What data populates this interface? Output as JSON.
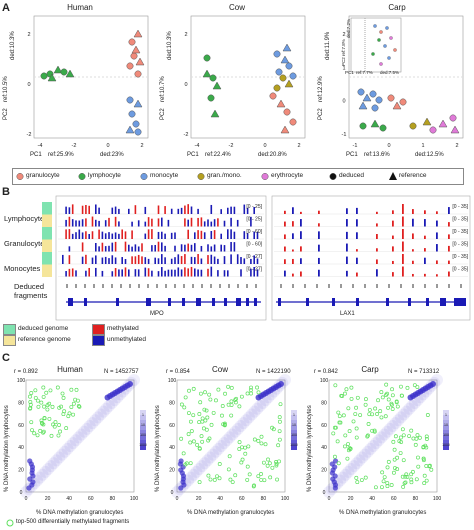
{
  "panels": {
    "a": {
      "letter": "A",
      "plots": [
        {
          "title": "Human",
          "pc1_label": "PC1",
          "pc1_ref": "ref:25.9%",
          "pc1_ded": "ded:23%",
          "pc2_label": "PC2",
          "pc2_ref": "ref:10.5%",
          "pc2_ded": "ded:10.3%",
          "x_ticks": [
            "-4",
            "-2",
            "0",
            "2"
          ],
          "y_ticks": [
            "2",
            "0",
            "-2"
          ]
        },
        {
          "title": "Cow",
          "pc1_label": "PC1",
          "pc1_ref": "ref:22.4%",
          "pc1_ded": "ded:20.8%",
          "pc2_label": "PC2",
          "pc2_ref": "ref:10.7%",
          "pc2_ded": "ded:10.3%",
          "x_ticks": [
            "-4",
            "-2",
            "0",
            "2"
          ],
          "y_ticks": [
            "2",
            "0",
            "-2"
          ]
        },
        {
          "title": "Carp",
          "pc1_label": "PC1",
          "pc1_ref": "ref:13.6%",
          "pc1_ded": "ded:12.5%",
          "pc2_label": "PC2",
          "pc2_ref": "ref:12.9%",
          "pc2_ded": "ded:11.9%",
          "x_ticks": [
            "-1",
            "0",
            "1",
            "2"
          ],
          "y_ticks": [
            "2",
            "1",
            "0",
            "-1"
          ],
          "inset": {
            "pc1_label": "PC1",
            "pc1_ref": "ref:7.7%",
            "pc1_ded": "ded:7.5%",
            "pc2_label": "PC2",
            "pc2_ref": "ref:7.8%",
            "pc2_ded": "ded:7.2%"
          }
        }
      ],
      "legend": [
        {
          "label": "granulocyte",
          "color": "#f08a7a",
          "shape": "circle"
        },
        {
          "label": "lymphocyte",
          "color": "#3aaa4a",
          "shape": "circle"
        },
        {
          "label": "monocyte",
          "color": "#6d9be0",
          "shape": "circle"
        },
        {
          "label": "gran./mono.",
          "color": "#b5a020",
          "shape": "circle"
        },
        {
          "label": "erythrocyte",
          "color": "#e07ad8",
          "shape": "circle"
        },
        {
          "label": "deduced",
          "color": "#111111",
          "shape": "circle"
        },
        {
          "label": "reference",
          "color": "#111111",
          "shape": "triangle"
        }
      ]
    },
    "b": {
      "letter": "B",
      "tracks": [
        "Lymphocytes",
        "Granulocytes",
        "Monocytes"
      ],
      "deduced_label_1": "Deduced",
      "deduced_label_2": "fragments",
      "left_ranges": [
        "[0 - 25]",
        "[0 - 25]",
        "[0 - 60]",
        "[0 - 60]",
        "[0 - 27]",
        "[0 - 27]"
      ],
      "right_ranges": [
        "[0 - 35]",
        "[0 - 35]",
        "[0 - 35]",
        "[0 - 35]",
        "[0 - 35]",
        "[0 - 35]"
      ],
      "left_gene": "MPO",
      "right_gene": "LAX1",
      "key": [
        {
          "label": "deduced genome",
          "color": "#7fe3b0"
        },
        {
          "label": "reference genome",
          "color": "#f5e59a"
        },
        {
          "label": "methylated",
          "color": "#e02020"
        },
        {
          "label": "unmethylated",
          "color": "#1a1ab5"
        }
      ]
    },
    "c": {
      "letter": "C",
      "plots": [
        {
          "title": "Human",
          "r": "r = 0.892",
          "n": "N = 1452757"
        },
        {
          "title": "Cow",
          "r": "r = 0.854",
          "n": "N = 1422190"
        },
        {
          "title": "Carp",
          "r": "r = 0.842",
          "n": "N = 713312"
        }
      ],
      "y_label": "% DNA methylation lymphocytes",
      "x_label": "% DNA methylation granulocytes",
      "ticks": [
        "0",
        "20",
        "40",
        "60",
        "80",
        "100"
      ],
      "colorbar": [
        "1",
        "10",
        "100",
        "1000"
      ],
      "footnote": "top-500 differentially methylated fragments",
      "colors": {
        "density": "#3b2fc9",
        "green": "#5fe05f"
      }
    }
  }
}
